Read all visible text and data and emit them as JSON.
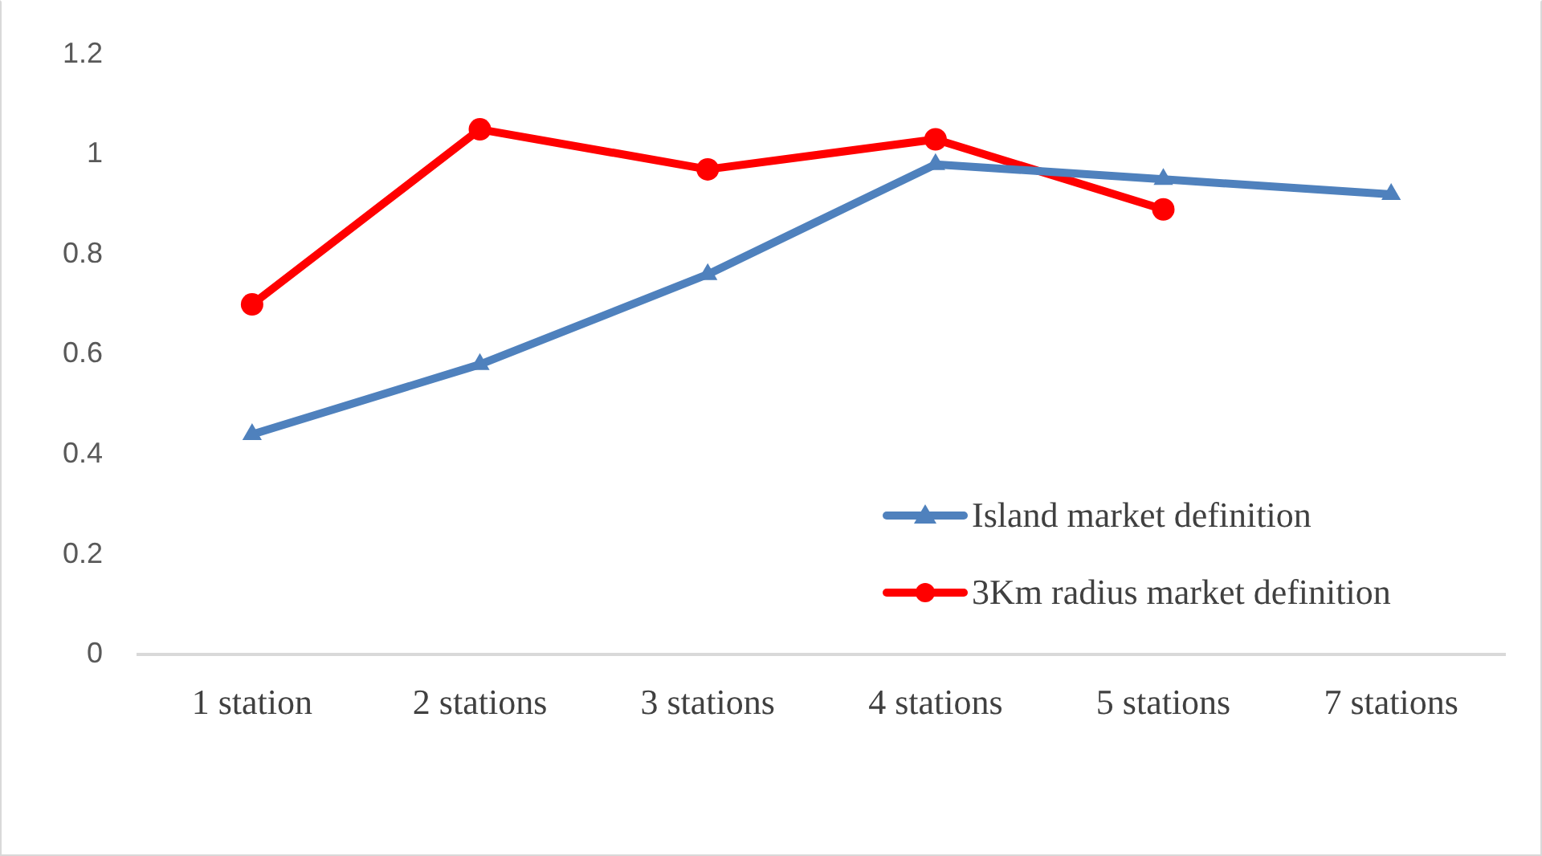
{
  "chart_data": {
    "type": "line",
    "categories": [
      "1 station",
      "2 stations",
      "3 stations",
      "4 stations",
      "5 stations",
      "7 stations"
    ],
    "series": [
      {
        "name": "Island market definition",
        "color": "#4f81bd",
        "marker": "triangle",
        "values": [
          0.44,
          0.58,
          0.76,
          0.98,
          0.95,
          0.92
        ]
      },
      {
        "name": "3Km radius market definition",
        "color": "#ff0000",
        "marker": "circle",
        "values": [
          0.7,
          1.05,
          0.97,
          1.03,
          0.89,
          null
        ]
      }
    ],
    "ylim": [
      0,
      1.2
    ],
    "yticks": [
      0,
      0.2,
      0.4,
      0.6,
      0.8,
      1,
      1.2
    ],
    "grid": false,
    "legend": "bottom right"
  }
}
